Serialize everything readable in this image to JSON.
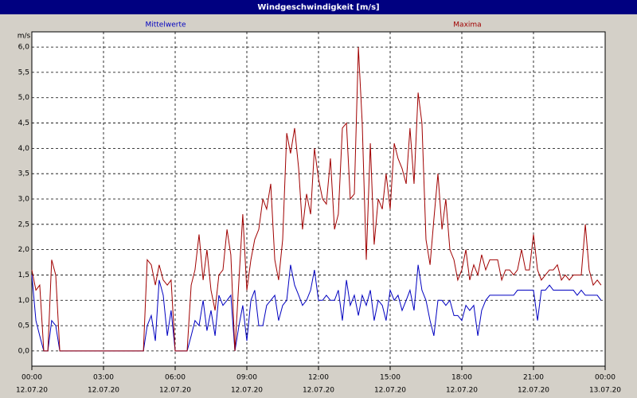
{
  "chart_data": {
    "type": "line",
    "title": "Windgeschwindigkeit [m/s]",
    "y_label": "m/s",
    "x": [
      0,
      0.17,
      0.33,
      0.5,
      0.67,
      0.83,
      1,
      1.17,
      1.33,
      1.5,
      1.67,
      1.83,
      2,
      2.17,
      2.33,
      2.5,
      2.67,
      2.83,
      3,
      3.17,
      3.33,
      3.5,
      3.67,
      3.83,
      4,
      4.17,
      4.33,
      4.5,
      4.67,
      4.83,
      5,
      5.17,
      5.33,
      5.5,
      5.67,
      5.83,
      6,
      6.17,
      6.33,
      6.5,
      6.67,
      6.83,
      7,
      7.17,
      7.33,
      7.5,
      7.67,
      7.83,
      8,
      8.17,
      8.33,
      8.5,
      8.67,
      8.83,
      9,
      9.17,
      9.33,
      9.5,
      9.67,
      9.83,
      10,
      10.17,
      10.33,
      10.5,
      10.67,
      10.83,
      11,
      11.17,
      11.33,
      11.5,
      11.67,
      11.83,
      12,
      12.17,
      12.33,
      12.5,
      12.67,
      12.83,
      13,
      13.17,
      13.33,
      13.5,
      13.67,
      13.83,
      14,
      14.17,
      14.33,
      14.5,
      14.67,
      14.83,
      15,
      15.17,
      15.33,
      15.5,
      15.67,
      15.83,
      16,
      16.17,
      16.33,
      16.5,
      16.67,
      16.83,
      17,
      17.17,
      17.33,
      17.5,
      17.67,
      17.83,
      18,
      18.17,
      18.33,
      18.5,
      18.67,
      18.83,
      19,
      19.17,
      19.33,
      19.5,
      19.67,
      19.83,
      20,
      20.17,
      20.33,
      20.5,
      20.67,
      20.83,
      21,
      21.17,
      21.33,
      21.5,
      21.67,
      21.83,
      22,
      22.17,
      22.33,
      22.5,
      22.67,
      22.83,
      23,
      23.17,
      23.33,
      23.5,
      23.67,
      23.83
    ],
    "series": [
      {
        "name": "Mittelwerte",
        "color": "#0000c0",
        "values": [
          1.5,
          0.6,
          0.3,
          0,
          0,
          0.6,
          0.5,
          0,
          0,
          0,
          0,
          0,
          0,
          0,
          0,
          0,
          0,
          0,
          0,
          0,
          0,
          0,
          0,
          0,
          0,
          0,
          0,
          0,
          0,
          0.5,
          0.7,
          0.2,
          1.4,
          1.1,
          0.3,
          0.8,
          0,
          0,
          0,
          0,
          0.3,
          0.6,
          0.5,
          1.0,
          0.4,
          0.8,
          0.3,
          1.1,
          0.9,
          1.0,
          1.1,
          0,
          0.5,
          0.9,
          0.2,
          1.0,
          1.2,
          0.5,
          0.5,
          0.9,
          1.0,
          1.1,
          0.6,
          0.9,
          1.0,
          1.7,
          1.3,
          1.1,
          0.9,
          1.0,
          1.2,
          1.6,
          1.0,
          1.0,
          1.1,
          1.0,
          1.0,
          1.2,
          0.6,
          1.4,
          0.9,
          1.1,
          0.7,
          1.1,
          0.9,
          1.2,
          0.6,
          1.0,
          0.9,
          0.6,
          1.2,
          1.0,
          1.1,
          0.8,
          1.0,
          1.2,
          0.8,
          1.7,
          1.2,
          1.0,
          0.6,
          0.3,
          1.0,
          1.0,
          0.9,
          1.0,
          0.7,
          0.7,
          0.6,
          0.9,
          0.8,
          0.9,
          0.3,
          0.8,
          1.0,
          1.1,
          1.1,
          1.1,
          1.1,
          1.1,
          1.1,
          1.1,
          1.2,
          1.2,
          1.2,
          1.2,
          1.2,
          0.6,
          1.2,
          1.2,
          1.3,
          1.2,
          1.2,
          1.2,
          1.2,
          1.2,
          1.2,
          1.1,
          1.2,
          1.1,
          1.1,
          1.1,
          1.1,
          1.0
        ]
      },
      {
        "name": "Maxima",
        "color": "#a00000",
        "values": [
          1.6,
          1.2,
          1.3,
          0,
          0,
          1.8,
          1.5,
          0,
          0,
          0,
          0,
          0,
          0,
          0,
          0,
          0,
          0,
          0,
          0,
          0,
          0,
          0,
          0,
          0,
          0,
          0,
          0,
          0,
          0,
          1.8,
          1.7,
          1.3,
          1.7,
          1.4,
          1.3,
          1.4,
          0,
          0,
          0,
          0,
          1.3,
          1.6,
          2.3,
          1.4,
          2.0,
          1.2,
          0.8,
          1.5,
          1.6,
          2.4,
          1.9,
          0,
          1.4,
          2.7,
          1.2,
          1.8,
          2.2,
          2.4,
          3.0,
          2.8,
          3.3,
          1.8,
          1.4,
          2.2,
          4.3,
          3.9,
          4.4,
          3.6,
          2.4,
          3.1,
          2.7,
          4.0,
          3.4,
          3.0,
          2.9,
          3.8,
          2.4,
          2.7,
          4.4,
          4.5,
          3.0,
          3.1,
          6.0,
          4.5,
          1.8,
          4.1,
          2.1,
          3.0,
          2.8,
          3.5,
          2.8,
          4.1,
          3.8,
          3.6,
          3.3,
          4.4,
          3.3,
          5.1,
          4.5,
          2.2,
          1.7,
          2.6,
          3.5,
          2.4,
          3.0,
          2.0,
          1.8,
          1.4,
          1.6,
          2.0,
          1.4,
          1.7,
          1.5,
          1.9,
          1.6,
          1.8,
          1.8,
          1.8,
          1.4,
          1.6,
          1.6,
          1.5,
          1.6,
          2.0,
          1.6,
          1.6,
          2.3,
          1.6,
          1.4,
          1.5,
          1.6,
          1.6,
          1.7,
          1.4,
          1.5,
          1.4,
          1.5,
          1.5,
          1.5,
          2.5,
          1.6,
          1.3,
          1.4,
          1.3
        ]
      }
    ],
    "xlim": [
      0,
      24
    ],
    "xticks": [
      {
        "value": 0,
        "label": "00:00"
      },
      {
        "value": 3,
        "label": "03:00"
      },
      {
        "value": 6,
        "label": "06:00"
      },
      {
        "value": 9,
        "label": "09:00"
      },
      {
        "value": 12,
        "label": "12:00"
      },
      {
        "value": 15,
        "label": "15:00"
      },
      {
        "value": 18,
        "label": "18:00"
      },
      {
        "value": 21,
        "label": "21:00"
      },
      {
        "value": 24,
        "label": "00:00"
      }
    ],
    "xtick_dates": [
      "12.07.20",
      "12.07.20",
      "12.07.20",
      "12.07.20",
      "12.07.20",
      "12.07.20",
      "12.07.20",
      "12.07.20",
      "13.07.20"
    ],
    "ylim": [
      -0.3,
      6.3
    ],
    "yticks": [
      {
        "value": 0,
        "label": "0,0"
      },
      {
        "value": 0.5,
        "label": "0,5"
      },
      {
        "value": 1,
        "label": "1,0"
      },
      {
        "value": 1.5,
        "label": "1,5"
      },
      {
        "value": 2,
        "label": "2,0"
      },
      {
        "value": 2.5,
        "label": "2,5"
      },
      {
        "value": 3,
        "label": "3,0"
      },
      {
        "value": 3.5,
        "label": "3,5"
      },
      {
        "value": 4,
        "label": "4,0"
      },
      {
        "value": 4.5,
        "label": "4,5"
      },
      {
        "value": 5,
        "label": "5,0"
      },
      {
        "value": 5.5,
        "label": "5,5"
      },
      {
        "value": 6,
        "label": "6,0"
      }
    ],
    "grid": true
  }
}
